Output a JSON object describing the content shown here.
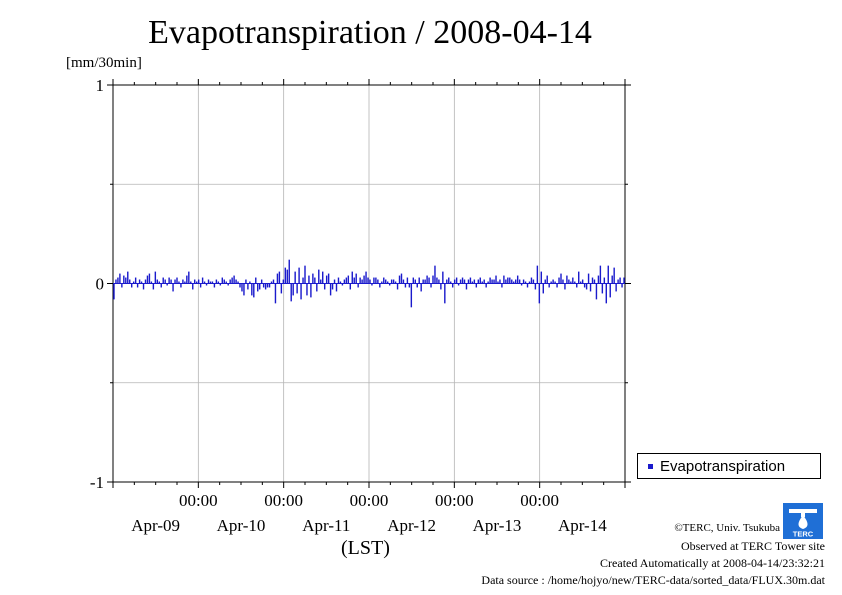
{
  "title": "Evapotranspiration / 2008-04-14",
  "unit_label": "[mm/30min]",
  "xlabel": "(LST)",
  "legend": {
    "label": "Evapotranspiration"
  },
  "credits": {
    "copyright": "©TERC, Univ. Tsukuba",
    "observed": "Observed at TERC Tower site",
    "created": "Created Automatically at 2008-04-14/23:32:21",
    "source": "Data source : /home/hojyo/new/TERC-data/sorted_data/FLUX.30m.dat"
  },
  "logo_text": "TERC",
  "colors": {
    "series": "#1a1acc",
    "grid": "#b4b4b4",
    "axis": "#000000"
  },
  "chart_data": {
    "type": "bar",
    "title": "Evapotranspiration / 2008-04-14",
    "ylabel": "[mm/30min]",
    "xlabel": "(LST)",
    "ylim": [
      -1,
      1
    ],
    "yticks": [
      {
        "value": 1,
        "label": "1"
      },
      {
        "value": 0,
        "label": "0"
      },
      {
        "value": -1,
        "label": "-1"
      }
    ],
    "ygrid": [
      0.5,
      -0.5
    ],
    "xrange_days": [
      0,
      6
    ],
    "xticks": [
      {
        "day": 1,
        "time": "00:00",
        "date": "Apr-09"
      },
      {
        "day": 2,
        "time": "00:00",
        "date": "Apr-10"
      },
      {
        "day": 3,
        "time": "00:00",
        "date": "Apr-11"
      },
      {
        "day": 4,
        "time": "00:00",
        "date": "Apr-12"
      },
      {
        "day": 5,
        "time": "00:00",
        "date": "Apr-13"
      },
      {
        "day": 6,
        "time": "",
        "date": "Apr-14"
      }
    ],
    "grid": true,
    "legend_position": "right",
    "series": [
      {
        "name": "Evapotranspiration",
        "interval": "30min",
        "values": [
          -0.08,
          0.02,
          0.03,
          0.05,
          -0.02,
          0.04,
          0.03,
          0.06,
          0.02,
          -0.02,
          0.01,
          0.03,
          -0.02,
          0.02,
          0.01,
          -0.03,
          0.02,
          0.04,
          0.05,
          0.01,
          -0.03,
          0.06,
          0.02,
          0.01,
          -0.02,
          0.03,
          0.02,
          -0.01,
          0.03,
          0.02,
          -0.04,
          0.02,
          0.03,
          0.01,
          -0.02,
          0.02,
          0.01,
          0.04,
          0.06,
          0.01,
          -0.03,
          0.02,
          0.01,
          0.02,
          -0.02,
          0.03,
          0.01,
          -0.01,
          0.02,
          0.01,
          0.01,
          -0.02,
          0.02,
          0.01,
          -0.01,
          0.03,
          0.02,
          0.01,
          -0.01,
          0.02,
          0.03,
          0.04,
          0.02,
          0.01,
          -0.02,
          -0.04,
          -0.06,
          0.02,
          -0.03,
          0.01,
          -0.06,
          -0.07,
          0.03,
          -0.04,
          -0.03,
          0.02,
          -0.02,
          -0.03,
          -0.02,
          -0.02,
          0.01,
          0.02,
          -0.1,
          0.05,
          0.06,
          -0.05,
          0.02,
          0.08,
          0.07,
          0.12,
          -0.09,
          -0.06,
          0.06,
          -0.05,
          0.08,
          -0.08,
          0.03,
          0.09,
          -0.06,
          0.04,
          -0.07,
          0.05,
          0.03,
          -0.04,
          0.07,
          0.02,
          0.06,
          -0.03,
          0.04,
          0.05,
          -0.06,
          -0.03,
          0.02,
          -0.04,
          0.03,
          0.01,
          -0.01,
          0.02,
          0.03,
          0.04,
          -0.03,
          0.06,
          0.03,
          0.05,
          -0.02,
          0.03,
          0.02,
          0.04,
          0.06,
          0.03,
          0.02,
          -0.01,
          0.03,
          0.03,
          0.02,
          -0.02,
          0.01,
          0.03,
          0.02,
          0.01,
          -0.01,
          0.02,
          0.02,
          0.01,
          -0.03,
          0.04,
          0.05,
          0.02,
          -0.02,
          0.03,
          -0.02,
          -0.12,
          0.03,
          0.02,
          -0.02,
          0.03,
          -0.04,
          0.02,
          0.02,
          0.04,
          0.03,
          -0.02,
          0.04,
          0.09,
          0.03,
          0.02,
          -0.03,
          0.06,
          -0.1,
          0.02,
          0.03,
          0.01,
          -0.02,
          0.02,
          0.03,
          -0.01,
          0.02,
          0.03,
          0.02,
          -0.03,
          0.02,
          0.03,
          0.01,
          0.02,
          -0.02,
          0.02,
          0.03,
          0.01,
          0.02,
          -0.02,
          0.01,
          0.03,
          0.02,
          0.02,
          0.04,
          0.01,
          0.02,
          -0.02,
          0.04,
          0.02,
          0.03,
          0.03,
          0.02,
          0.01,
          0.02,
          0.04,
          0.02,
          -0.01,
          0.02,
          0.01,
          -0.02,
          0.01,
          0.03,
          0.02,
          -0.03,
          0.09,
          -0.1,
          0.06,
          -0.05,
          0.02,
          0.04,
          -0.02,
          0.01,
          0.02,
          0.01,
          -0.02,
          0.03,
          0.05,
          0.02,
          -0.03,
          0.04,
          0.02,
          0.01,
          0.03,
          0.01,
          -0.02,
          0.06,
          0.01,
          0.02,
          -0.02,
          -0.03,
          0.05,
          -0.04,
          0.03,
          0.02,
          -0.08,
          0.04,
          0.09,
          -0.05,
          0.03,
          -0.1,
          0.09,
          -0.07,
          0.04,
          0.08,
          -0.04,
          0.02,
          0.03,
          -0.02,
          0.03
        ]
      }
    ]
  }
}
